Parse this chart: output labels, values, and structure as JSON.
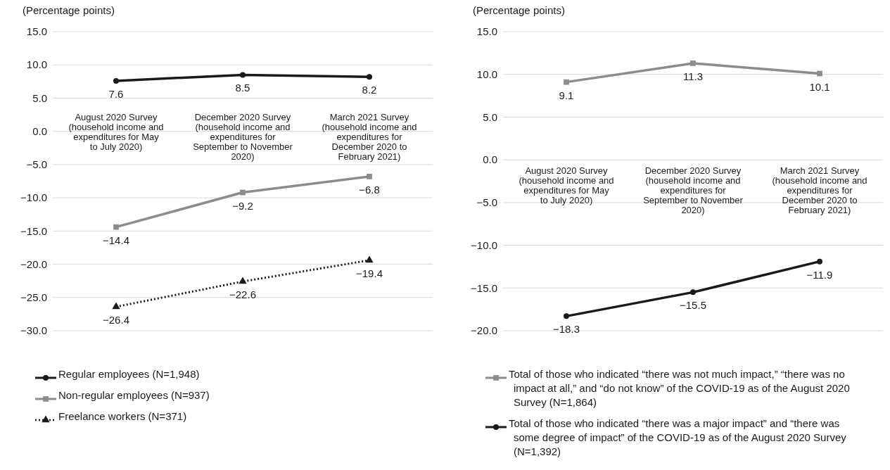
{
  "chart_data": [
    {
      "type": "line",
      "ylabel": "(Percentage points)",
      "categories": [
        "August 2020 Survey (household income and expenditures for May to July 2020)",
        "December 2020 Survey (household income and expenditures for September to November 2020)",
        "March 2021 Survey (household income and expenditures for December 2020 to February 2021)"
      ],
      "ylim": [
        -30,
        15
      ],
      "yticks": [
        {
          "value": -30,
          "label": "−30.0"
        },
        {
          "value": -25,
          "label": "−25.0"
        },
        {
          "value": -20,
          "label": "−20.0"
        },
        {
          "value": -15,
          "label": "−15.0"
        },
        {
          "value": -10,
          "label": "−10.0"
        },
        {
          "value": -5,
          "label": "−5.0"
        },
        {
          "value": 0,
          "label": "0.0"
        },
        {
          "value": 5,
          "label": "5.0"
        },
        {
          "value": 10,
          "label": "10.0"
        },
        {
          "value": 15,
          "label": "15.0"
        }
      ],
      "grid": "y",
      "legend": "bottom",
      "series": [
        {
          "name": "Regular employees (N=1,948)",
          "color": "#1a1a1a",
          "marker": "circle",
          "line_style": "solid",
          "values": [
            7.6,
            8.5,
            8.2
          ],
          "value_labels": [
            "7.6",
            "8.5",
            "8.2"
          ]
        },
        {
          "name": "Non-regular employees (N=937)",
          "color": "#8c8c8c",
          "marker": "square",
          "line_style": "solid",
          "values": [
            -14.4,
            -9.2,
            -6.8
          ],
          "value_labels": [
            "−14.4",
            "−9.2",
            "−6.8"
          ]
        },
        {
          "name": "Freelance workers (N=371)",
          "color": "#1a1a1a",
          "marker": "triangle",
          "line_style": "dotted",
          "values": [
            -26.4,
            -22.6,
            -19.4
          ],
          "value_labels": [
            "−26.4",
            "−22.6",
            "−19.4"
          ]
        }
      ]
    },
    {
      "type": "line",
      "ylabel": "(Percentage points)",
      "categories": [
        "August 2020 Survey (household income and expenditures for May to July 2020)",
        "December 2020 Survey (household income and expenditures for September to November 2020)",
        "March 2021 Survey (household income and expenditures for December 2020 to February 2021)"
      ],
      "ylim": [
        -20,
        15
      ],
      "yticks": [
        {
          "value": -20,
          "label": "−20.0"
        },
        {
          "value": -15,
          "label": "−15.0"
        },
        {
          "value": -10,
          "label": "−10.0"
        },
        {
          "value": -5,
          "label": "−5.0"
        },
        {
          "value": 0,
          "label": "0.0"
        },
        {
          "value": 5,
          "label": "5.0"
        },
        {
          "value": 10,
          "label": "10.0"
        },
        {
          "value": 15,
          "label": "15.0"
        }
      ],
      "grid": "y",
      "legend": "bottom",
      "series": [
        {
          "name": "Total of those who indicated “there was not much impact,” “there was no impact at all,” and “do not know” of the COVID-19 as of the August 2020 Survey (N=1,864)",
          "color": "#8c8c8c",
          "marker": "square",
          "line_style": "solid",
          "values": [
            9.1,
            11.3,
            10.1
          ],
          "value_labels": [
            "9.1",
            "11.3",
            "10.1"
          ]
        },
        {
          "name": "Total of those who indicated “there was a major impact” and “there was some degree of impact” of the COVID-19 as of the August 2020 Survey (N=1,392)",
          "color": "#1a1a1a",
          "marker": "circle",
          "line_style": "solid",
          "values": [
            -18.3,
            -15.5,
            -11.9
          ],
          "value_labels": [
            "−18.3",
            "−15.5",
            "−11.9"
          ]
        }
      ]
    }
  ]
}
